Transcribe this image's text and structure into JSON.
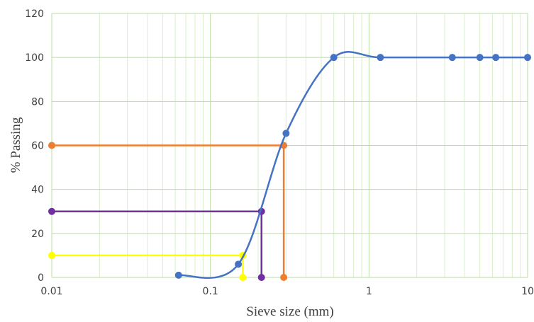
{
  "chart_data": {
    "type": "scatter",
    "xscale": "log",
    "xlim": [
      0.01,
      10
    ],
    "ylim": [
      0,
      120
    ],
    "xticks": [
      "0.01",
      "0.1",
      "1",
      "10"
    ],
    "yticks": [
      "0",
      "20",
      "40",
      "60",
      "80",
      "100",
      "120"
    ],
    "xlabel": "Sieve size (mm)",
    "ylabel": "% Passing",
    "grid": true,
    "legend": "none",
    "series": [
      {
        "color": "#4472C4",
        "smooth": true,
        "x": [
          0.063,
          0.15,
          0.3,
          0.6,
          1.18,
          3.35,
          5.0,
          6.3,
          10.0
        ],
        "y": [
          1,
          6,
          65.5,
          100,
          100,
          100,
          100,
          100,
          100
        ]
      },
      {
        "color": "#ED7D31",
        "smooth": false,
        "x": [
          0.01,
          0.29,
          0.29
        ],
        "y": [
          60,
          60,
          0
        ]
      },
      {
        "color": "#7030A0",
        "smooth": false,
        "x": [
          0.01,
          0.21,
          0.21
        ],
        "y": [
          30,
          30,
          0
        ]
      },
      {
        "color": "#FFFF00",
        "smooth": false,
        "x": [
          0.01,
          0.16,
          0.16
        ],
        "y": [
          10,
          10,
          0
        ]
      }
    ]
  }
}
